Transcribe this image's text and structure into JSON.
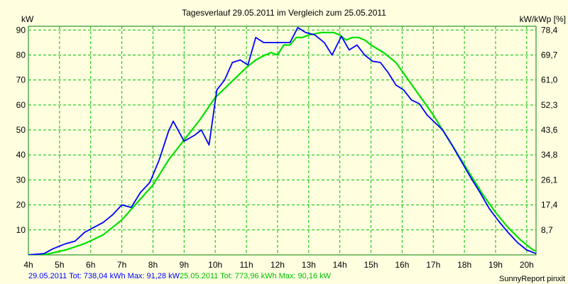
{
  "chart_data": {
    "type": "line",
    "title": "Tagesverlauf 29.05.2011 im Vergleich zum 25.05.2011",
    "ylabel_left": "kW",
    "ylabel_right": "kW/kWp [%]",
    "xlim": [
      4,
      20.3
    ],
    "ylim": [
      0,
      91.5
    ],
    "grid": true,
    "x_ticks": [
      {
        "v": 4,
        "label": "4h"
      },
      {
        "v": 5,
        "label": "5h"
      },
      {
        "v": 6,
        "label": "6h"
      },
      {
        "v": 7,
        "label": "7h"
      },
      {
        "v": 8,
        "label": "8h"
      },
      {
        "v": 9,
        "label": "9h"
      },
      {
        "v": 10,
        "label": "10h"
      },
      {
        "v": 11,
        "label": "11h"
      },
      {
        "v": 12,
        "label": "12h"
      },
      {
        "v": 13,
        "label": "13h"
      },
      {
        "v": 14,
        "label": "14h"
      },
      {
        "v": 15,
        "label": "15h"
      },
      {
        "v": 16,
        "label": "16h"
      },
      {
        "v": 17,
        "label": "17h"
      },
      {
        "v": 18,
        "label": "18h"
      },
      {
        "v": 19,
        "label": "19h"
      },
      {
        "v": 20,
        "label": "20h"
      }
    ],
    "y_ticks_left": [
      {
        "v": 10,
        "label": "10"
      },
      {
        "v": 20,
        "label": "20"
      },
      {
        "v": 30,
        "label": "30"
      },
      {
        "v": 40,
        "label": "40"
      },
      {
        "v": 50,
        "label": "50"
      },
      {
        "v": 60,
        "label": "60"
      },
      {
        "v": 70,
        "label": "70"
      },
      {
        "v": 80,
        "label": "80"
      },
      {
        "v": 90,
        "label": "90"
      }
    ],
    "y_ticks_right": [
      {
        "v": 10,
        "label": "8,7"
      },
      {
        "v": 20,
        "label": "17,4"
      },
      {
        "v": 30,
        "label": "26,1"
      },
      {
        "v": 40,
        "label": "34,8"
      },
      {
        "v": 50,
        "label": "43,6"
      },
      {
        "v": 60,
        "label": "52,3"
      },
      {
        "v": 70,
        "label": "61,0"
      },
      {
        "v": 80,
        "label": "69,7"
      },
      {
        "v": 90,
        "label": "78,4"
      }
    ],
    "series": [
      {
        "name": "29.05.2011",
        "color": "#0000ff",
        "points": [
          [
            4,
            0
          ],
          [
            4.5,
            0.5
          ],
          [
            4.8,
            2.5
          ],
          [
            5.2,
            4.5
          ],
          [
            5.5,
            5.5
          ],
          [
            5.8,
            9
          ],
          [
            6.1,
            11
          ],
          [
            6.4,
            13
          ],
          [
            6.7,
            16
          ],
          [
            7,
            20
          ],
          [
            7.3,
            19
          ],
          [
            7.6,
            25
          ],
          [
            7.9,
            29
          ],
          [
            8.2,
            38
          ],
          [
            8.5,
            49.5
          ],
          [
            8.65,
            53.5
          ],
          [
            9,
            45.5
          ],
          [
            9.35,
            48
          ],
          [
            9.55,
            50
          ],
          [
            9.8,
            44
          ],
          [
            10.05,
            66
          ],
          [
            10.3,
            70
          ],
          [
            10.55,
            77
          ],
          [
            10.8,
            78
          ],
          [
            11.05,
            76
          ],
          [
            11.3,
            87
          ],
          [
            11.55,
            85
          ],
          [
            11.8,
            85
          ],
          [
            12.1,
            85
          ],
          [
            12.4,
            85
          ],
          [
            12.65,
            91
          ],
          [
            12.9,
            89
          ],
          [
            13.2,
            88
          ],
          [
            13.5,
            85
          ],
          [
            13.75,
            80
          ],
          [
            14.05,
            87.5
          ],
          [
            14.3,
            82
          ],
          [
            14.55,
            84
          ],
          [
            14.8,
            80
          ],
          [
            15.05,
            77.5
          ],
          [
            15.3,
            77
          ],
          [
            15.55,
            73
          ],
          [
            15.8,
            68
          ],
          [
            16.05,
            66
          ],
          [
            16.3,
            62
          ],
          [
            16.55,
            60.5
          ],
          [
            16.8,
            56
          ],
          [
            17.05,
            53
          ],
          [
            17.3,
            50
          ],
          [
            17.6,
            44
          ],
          [
            17.9,
            37.5
          ],
          [
            18.2,
            31
          ],
          [
            18.5,
            25
          ],
          [
            18.8,
            18.5
          ],
          [
            19.1,
            13.5
          ],
          [
            19.4,
            9
          ],
          [
            19.7,
            5
          ],
          [
            20,
            2
          ],
          [
            20.3,
            0.5
          ],
          [
            20.5,
            0
          ]
        ]
      },
      {
        "name": "25.05.2011",
        "color": "#00e000",
        "points": [
          [
            4,
            0
          ],
          [
            4.6,
            0.3
          ],
          [
            5.2,
            2
          ],
          [
            5.8,
            4.5
          ],
          [
            6.4,
            8
          ],
          [
            7,
            14
          ],
          [
            7.5,
            21
          ],
          [
            8,
            28
          ],
          [
            8.5,
            38
          ],
          [
            9,
            46
          ],
          [
            9.5,
            54
          ],
          [
            10,
            63
          ],
          [
            10.5,
            69
          ],
          [
            11,
            75
          ],
          [
            11.3,
            78
          ],
          [
            11.6,
            80
          ],
          [
            11.8,
            81
          ],
          [
            12,
            80
          ],
          [
            12.2,
            84
          ],
          [
            12.4,
            84
          ],
          [
            12.6,
            87
          ],
          [
            12.8,
            87
          ],
          [
            13,
            88
          ],
          [
            13.2,
            88.5
          ],
          [
            13.4,
            89
          ],
          [
            13.6,
            89
          ],
          [
            13.8,
            89
          ],
          [
            14,
            88
          ],
          [
            14.2,
            86
          ],
          [
            14.4,
            87
          ],
          [
            14.6,
            87
          ],
          [
            14.8,
            86
          ],
          [
            15,
            84
          ],
          [
            15.4,
            81
          ],
          [
            15.8,
            77
          ],
          [
            16.2,
            70
          ],
          [
            16.6,
            63
          ],
          [
            17,
            56
          ],
          [
            17.4,
            48
          ],
          [
            17.8,
            40
          ],
          [
            18.2,
            32
          ],
          [
            18.6,
            24
          ],
          [
            19,
            17
          ],
          [
            19.4,
            11
          ],
          [
            19.8,
            6
          ],
          [
            20.2,
            2
          ],
          [
            20.6,
            0.3
          ],
          [
            21,
            0
          ]
        ]
      }
    ]
  },
  "legend": {
    "s1_date": "29.05.2011",
    "s1_stats": " Tot: 738,04 kWh Max: 91,28 kW",
    "s2_date": "25.05.2011",
    "s2_stats": " Tot: 773,96 kWh Max: 90,16 kW"
  },
  "branding": "SunnyReport pinxit",
  "colors": {
    "background": "#ffffe0",
    "grid": "#00c000",
    "series1": "#0000ff",
    "series2": "#00e000"
  }
}
